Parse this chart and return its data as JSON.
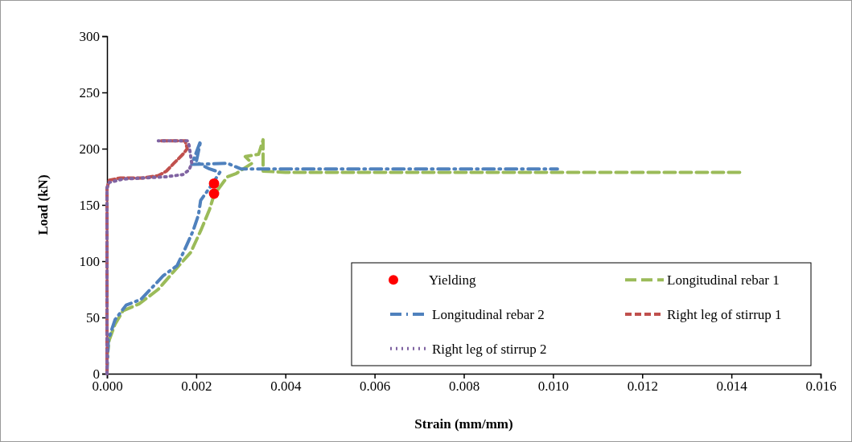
{
  "chart_data": {
    "type": "line",
    "xlabel": "Strain (mm/mm)",
    "ylabel": "Load (kN)",
    "xlim": [
      0,
      0.016
    ],
    "ylim": [
      0,
      300
    ],
    "xticks": [
      {
        "value": 0,
        "label": "0.000"
      },
      {
        "value": 0.002,
        "label": "0.002"
      },
      {
        "value": 0.004,
        "label": "0.004"
      },
      {
        "value": 0.006,
        "label": "0.006"
      },
      {
        "value": 0.008,
        "label": "0.008"
      },
      {
        "value": 0.01,
        "label": "0.010"
      },
      {
        "value": 0.012,
        "label": "0.012"
      },
      {
        "value": 0.014,
        "label": "0.014"
      },
      {
        "value": 0.016,
        "label": "0.016"
      }
    ],
    "yticks": [
      0,
      50,
      100,
      150,
      200,
      250,
      300
    ],
    "grid": false,
    "legend": "bottom right",
    "series": [
      {
        "name": "Yielding",
        "type": "scatter",
        "marker": "circle",
        "color": "#ff0000",
        "x": [
          0.0024,
          0.0024
        ],
        "values": [
          169,
          160
        ]
      },
      {
        "name": "Longitudinal rebar 1",
        "color": "#9bbb59",
        "line_style": "dashed",
        "marker": "none",
        "x": [
          0,
          5e-05,
          0.00018,
          0.00036,
          0.00072,
          0.00115,
          0.0015,
          0.00188,
          0.0021,
          0.0023,
          0.0024,
          0.0027,
          0.0029,
          0.00325,
          0.0031,
          0.0034,
          0.0035,
          0.0035,
          0.004,
          0.006,
          0.008,
          0.01,
          0.012,
          0.0142
        ],
        "values": [
          15,
          30,
          44,
          56,
          62,
          75,
          91,
          108,
          127,
          146,
          159,
          175,
          178,
          187,
          193,
          195,
          208,
          180,
          179,
          179,
          179,
          179,
          179,
          179
        ]
      },
      {
        "name": "Longitudinal rebar 2",
        "color": "#4f81bd",
        "line_style": "dashdot",
        "marker": "none",
        "x": [
          0,
          3e-05,
          0.00018,
          0.00043,
          0.00076,
          0.00126,
          0.00157,
          0.00175,
          0.00193,
          0.00205,
          0.0021,
          0.00235,
          0.00253,
          0.0023,
          0.002,
          0.0021,
          0.0019,
          0.0027,
          0.003,
          0.005,
          0.007,
          0.009,
          0.0101
        ],
        "values": [
          0,
          30,
          48,
          61,
          66,
          87,
          96,
          111,
          127,
          141,
          154,
          168,
          179,
          182,
          188,
          207,
          186,
          187,
          182,
          182,
          182,
          182,
          182
        ]
      },
      {
        "name": "Right leg of stirrup 1",
        "color": "#c0504d",
        "line_style": "dashed",
        "marker": "none",
        "x": [
          0,
          0,
          5e-05,
          0.0003,
          0.0008,
          0.00115,
          0.00133,
          0.0015,
          0.0017,
          0.0018,
          0.00175,
          0.00115
        ],
        "values": [
          0,
          165,
          172,
          174,
          174,
          176,
          180,
          187,
          195,
          200,
          207,
          207
        ]
      },
      {
        "name": "Right leg of stirrup 2",
        "color": "#8064a2",
        "line_style": "dotted",
        "marker": "none",
        "x": [
          0,
          0,
          5e-05,
          0.00016,
          0.00036,
          0.00133,
          0.0017,
          0.00184,
          0.0019,
          0.00184,
          0.0018,
          0.00115
        ],
        "values": [
          0,
          165,
          170,
          171,
          173,
          175,
          177,
          181,
          187,
          203,
          207,
          207
        ]
      }
    ]
  }
}
